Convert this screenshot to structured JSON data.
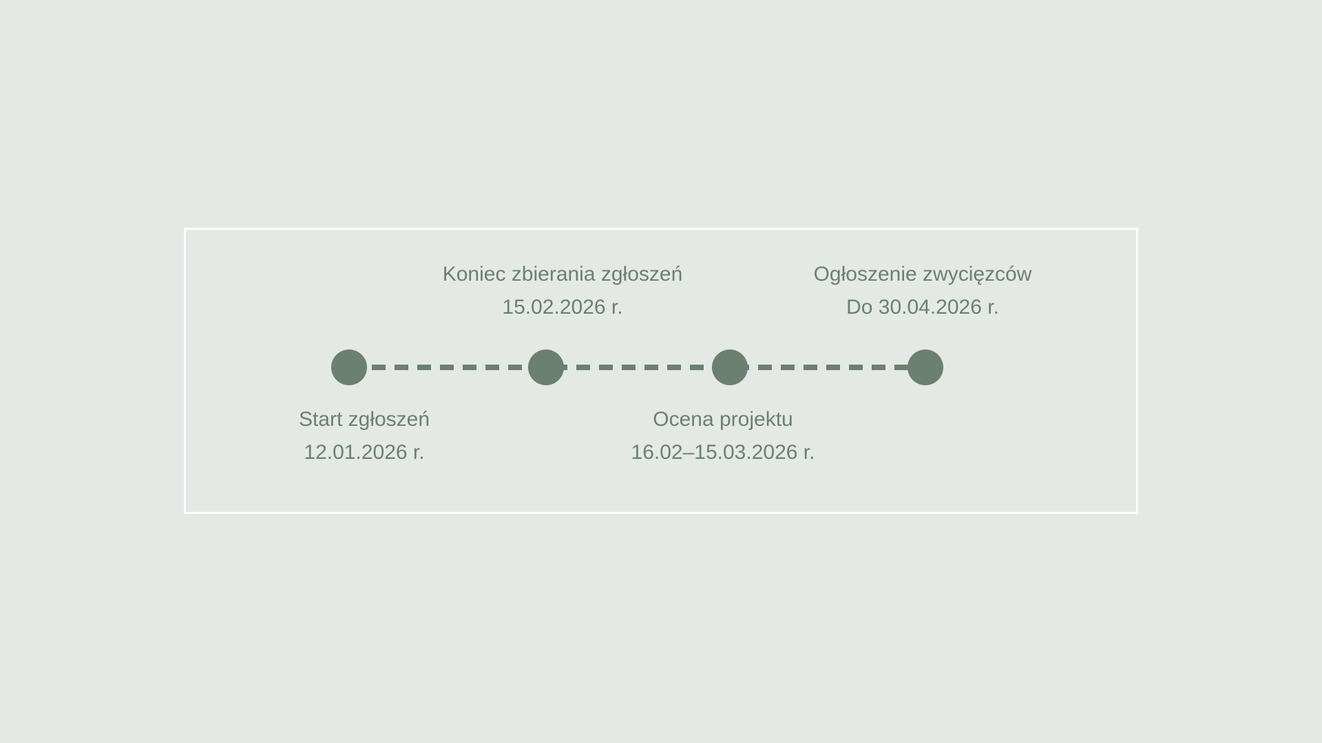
{
  "colors": {
    "background": "#e4e9e5",
    "accent": "#6b8070",
    "frame-border": "#ffffff"
  },
  "timeline": {
    "milestones": [
      {
        "title": "Start zgłoszeń",
        "date": "12.01.2026 r.",
        "position": "below"
      },
      {
        "title": "Koniec zbierania zgłoszeń",
        "date": "15.02.2026 r.",
        "position": "above"
      },
      {
        "title": "Ocena projektu",
        "date": "16.02–15.03.2026 r.",
        "position": "below"
      },
      {
        "title": "Ogłoszenie zwycięzców",
        "date": "Do 30.04.2026 r.",
        "position": "above"
      }
    ]
  }
}
